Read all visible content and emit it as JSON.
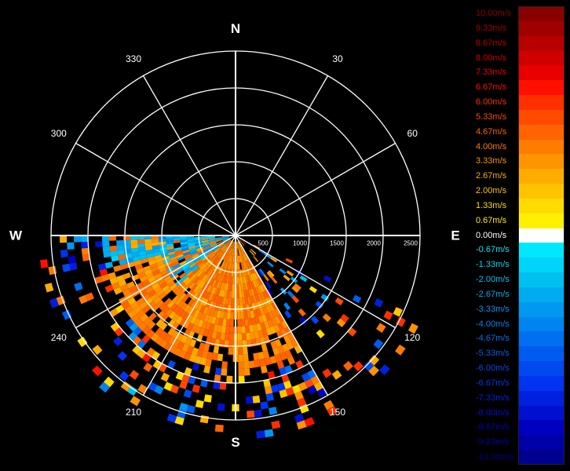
{
  "chart_data": {
    "type": "polar-radar-ppi",
    "compass": [
      "N",
      "E",
      "S",
      "W"
    ],
    "angle_ticks": [
      {
        "deg": 30,
        "label": "30"
      },
      {
        "deg": 60,
        "label": "60"
      },
      {
        "deg": 120,
        "label": "120"
      },
      {
        "deg": 150,
        "label": "150"
      },
      {
        "deg": 210,
        "label": "210"
      },
      {
        "deg": 240,
        "label": "240"
      },
      {
        "deg": 300,
        "label": "300"
      },
      {
        "deg": 330,
        "label": "330"
      }
    ],
    "range_rings": [
      500,
      1000,
      1500,
      2000,
      2500
    ],
    "range_labels": [
      "500",
      "1000",
      "1500",
      "2000",
      "2500"
    ],
    "range_max": 2500,
    "scan_sector_deg": [
      114,
      270
    ],
    "dense_region_deg": [
      150,
      270
    ],
    "colorbar_unit": "m/s",
    "colorbar": [
      {
        "label": "10.00m/s",
        "value": 10.0,
        "color": "#8a0000",
        "text_color": "#8a0000"
      },
      {
        "label": "9.33m/s",
        "value": 9.33,
        "color": "#a00000",
        "text_color": "#a00000"
      },
      {
        "label": "8.67m/s",
        "value": 8.67,
        "color": "#b80000",
        "text_color": "#b80000"
      },
      {
        "label": "8.00m/s",
        "value": 8.0,
        "color": "#d00000",
        "text_color": "#d00000"
      },
      {
        "label": "7.33m/s",
        "value": 7.33,
        "color": "#e80000",
        "text_color": "#e80000"
      },
      {
        "label": "6.67m/s",
        "value": 6.67,
        "color": "#ff1000",
        "text_color": "#ff1000"
      },
      {
        "label": "6.00m/s",
        "value": 6.0,
        "color": "#ff3000",
        "text_color": "#ff3000"
      },
      {
        "label": "5.33m/s",
        "value": 5.33,
        "color": "#ff4a00",
        "text_color": "#ff4a00"
      },
      {
        "label": "4.67m/s",
        "value": 4.67,
        "color": "#ff6400",
        "text_color": "#ff6400"
      },
      {
        "label": "4.00m/s",
        "value": 4.0,
        "color": "#ff7c00",
        "text_color": "#ff7c00"
      },
      {
        "label": "3.33m/s",
        "value": 3.33,
        "color": "#ff9400",
        "text_color": "#ff9400"
      },
      {
        "label": "2.67m/s",
        "value": 2.67,
        "color": "#ffac00",
        "text_color": "#ffac00"
      },
      {
        "label": "2.00m/s",
        "value": 2.0,
        "color": "#ffc400",
        "text_color": "#ffc400"
      },
      {
        "label": "1.33m/s",
        "value": 1.33,
        "color": "#ffdc00",
        "text_color": "#ffdc00"
      },
      {
        "label": "0.67m/s",
        "value": 0.67,
        "color": "#fff000",
        "text_color": "#fff000"
      },
      {
        "label": "0.00m/s",
        "value": 0.0,
        "color": "#ffffff",
        "text_color": "#ffffff"
      },
      {
        "label": "-0.67m/s",
        "value": -0.67,
        "color": "#00e8ff",
        "text_color": "#00e8ff"
      },
      {
        "label": "-1.33m/s",
        "value": -1.33,
        "color": "#00d4f8",
        "text_color": "#00d4f8"
      },
      {
        "label": "-2.00m/s",
        "value": -2.0,
        "color": "#00c0f0",
        "text_color": "#00c0f0"
      },
      {
        "label": "-2.67m/s",
        "value": -2.67,
        "color": "#00acf0",
        "text_color": "#00acf0"
      },
      {
        "label": "-3.33m/s",
        "value": -3.33,
        "color": "#0098f0",
        "text_color": "#0098f0"
      },
      {
        "label": "-4.00m/s",
        "value": -4.0,
        "color": "#0084f0",
        "text_color": "#0084f0"
      },
      {
        "label": "-4.67m/s",
        "value": -4.67,
        "color": "#0070f0",
        "text_color": "#0070f0"
      },
      {
        "label": "-5.33m/s",
        "value": -5.33,
        "color": "#005cf0",
        "text_color": "#005cf0"
      },
      {
        "label": "-6.00m/s",
        "value": -6.0,
        "color": "#0048f0",
        "text_color": "#0048f0"
      },
      {
        "label": "-6.67m/s",
        "value": -6.67,
        "color": "#0034f0",
        "text_color": "#0034f0"
      },
      {
        "label": "-7.33m/s",
        "value": -7.33,
        "color": "#0020e0",
        "text_color": "#0020e0"
      },
      {
        "label": "-8.00m/s",
        "value": -8.0,
        "color": "#0010d0",
        "text_color": "#0010d0"
      },
      {
        "label": "-8.67m/s",
        "value": -8.67,
        "color": "#0000c0",
        "text_color": "#0000c0"
      },
      {
        "label": "-9.33m/s",
        "value": -9.33,
        "color": "#0000a8",
        "text_color": "#0000a8"
      },
      {
        "label": "-10.00m/s",
        "value": -10.0,
        "color": "#000090",
        "text_color": "#000090"
      }
    ]
  }
}
